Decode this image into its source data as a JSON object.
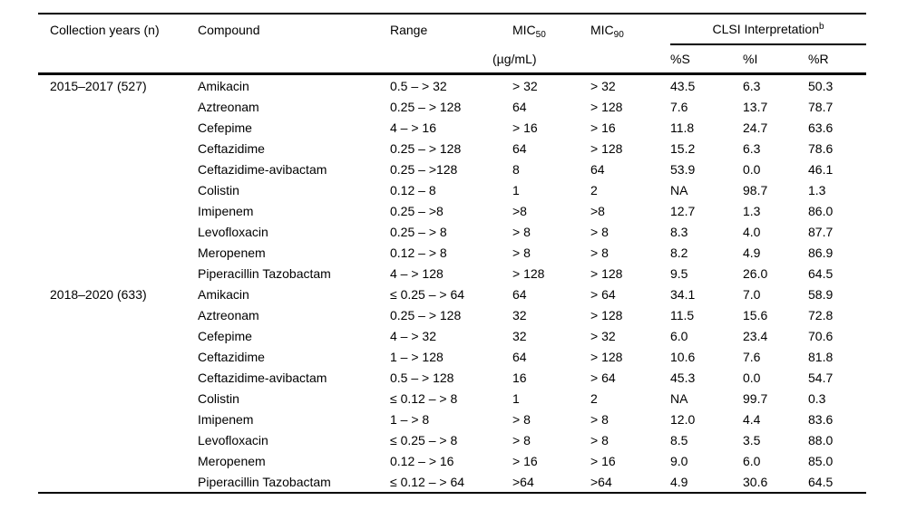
{
  "table": {
    "headers": {
      "collection_years": "Collection years (n)",
      "compound": "Compound",
      "range": "Range",
      "mic_label": "MIC",
      "mic50_sub": "50",
      "mic90_sub": "90",
      "clsi": "CLSI Interpretation",
      "clsi_sup": "b",
      "units": "(µg/mL)",
      "pct_s": "%S",
      "pct_i": "%I",
      "pct_r": "%R"
    },
    "groups": [
      {
        "label": "2015–2017 (527)",
        "rows": [
          {
            "compound": "Amikacin",
            "range": "0.5 – > 32",
            "mic50": "> 32",
            "mic90": "> 32",
            "pct_s": "43.5",
            "pct_i": "6.3",
            "pct_r": "50.3"
          },
          {
            "compound": "Aztreonam",
            "range": "0.25 – > 128",
            "mic50": "64",
            "mic90": "> 128",
            "pct_s": "7.6",
            "pct_i": "13.7",
            "pct_r": "78.7"
          },
          {
            "compound": "Cefepime",
            "range": "4 – > 16",
            "mic50": "> 16",
            "mic90": "> 16",
            "pct_s": "11.8",
            "pct_i": "24.7",
            "pct_r": "63.6"
          },
          {
            "compound": "Ceftazidime",
            "range": "0.25 – > 128",
            "mic50": "64",
            "mic90": "> 128",
            "pct_s": "15.2",
            "pct_i": "6.3",
            "pct_r": "78.6"
          },
          {
            "compound": "Ceftazidime-avibactam",
            "range": "0.25 – >128",
            "mic50": "8",
            "mic90": "64",
            "pct_s": "53.9",
            "pct_i": "0.0",
            "pct_r": "46.1"
          },
          {
            "compound": "Colistin",
            "range": "0.12 – 8",
            "mic50": "1",
            "mic90": "2",
            "pct_s": "NA",
            "pct_i": "98.7",
            "pct_r": "1.3"
          },
          {
            "compound": "Imipenem",
            "range": "0.25 – >8",
            "mic50": ">8",
            "mic90": ">8",
            "pct_s": "12.7",
            "pct_i": "1.3",
            "pct_r": "86.0"
          },
          {
            "compound": "Levofloxacin",
            "range": "0.25 – > 8",
            "mic50": "> 8",
            "mic90": "> 8",
            "pct_s": "8.3",
            "pct_i": "4.0",
            "pct_r": "87.7"
          },
          {
            "compound": "Meropenem",
            "range": "0.12 – > 8",
            "mic50": "> 8",
            "mic90": "> 8",
            "pct_s": "8.2",
            "pct_i": "4.9",
            "pct_r": "86.9"
          },
          {
            "compound": "Piperacillin Tazobactam",
            "range": "4 – > 128",
            "mic50": "> 128",
            "mic90": "> 128",
            "pct_s": "9.5",
            "pct_i": "26.0",
            "pct_r": "64.5"
          }
        ]
      },
      {
        "label": "2018–2020 (633)",
        "rows": [
          {
            "compound": "Amikacin",
            "range": "≤ 0.25 – > 64",
            "mic50": "64",
            "mic90": "> 64",
            "pct_s": "34.1",
            "pct_i": "7.0",
            "pct_r": "58.9"
          },
          {
            "compound": "Aztreonam",
            "range": "0.25 – > 128",
            "mic50": "32",
            "mic90": "> 128",
            "pct_s": "11.5",
            "pct_i": "15.6",
            "pct_r": "72.8"
          },
          {
            "compound": "Cefepime",
            "range": "4 – > 32",
            "mic50": "32",
            "mic90": "> 32",
            "pct_s": "6.0",
            "pct_i": "23.4",
            "pct_r": "70.6"
          },
          {
            "compound": "Ceftazidime",
            "range": "1 – > 128",
            "mic50": "64",
            "mic90": "> 128",
            "pct_s": "10.6",
            "pct_i": "7.6",
            "pct_r": "81.8"
          },
          {
            "compound": "Ceftazidime-avibactam",
            "range": "0.5 – > 128",
            "mic50": "16",
            "mic90": "> 64",
            "pct_s": "45.3",
            "pct_i": "0.0",
            "pct_r": "54.7"
          },
          {
            "compound": "Colistin",
            "range": "≤ 0.12 – > 8",
            "mic50": "1",
            "mic90": "2",
            "pct_s": "NA",
            "pct_i": "99.7",
            "pct_r": "0.3"
          },
          {
            "compound": "Imipenem",
            "range": "1 – > 8",
            "mic50": "> 8",
            "mic90": "> 8",
            "pct_s": "12.0",
            "pct_i": "4.4",
            "pct_r": "83.6"
          },
          {
            "compound": "Levofloxacin",
            "range": "≤ 0.25 – > 8",
            "mic50": "> 8",
            "mic90": "> 8",
            "pct_s": "8.5",
            "pct_i": "3.5",
            "pct_r": "88.0"
          },
          {
            "compound": "Meropenem",
            "range": "0.12 – > 16",
            "mic50": "> 16",
            "mic90": "> 16",
            "pct_s": "9.0",
            "pct_i": "6.0",
            "pct_r": "85.0"
          },
          {
            "compound": "Piperacillin Tazobactam",
            "range": "≤ 0.12 – > 64",
            "mic50": ">64",
            "mic90": ">64",
            "pct_s": "4.9",
            "pct_i": "30.6",
            "pct_r": "64.5"
          }
        ]
      }
    ]
  }
}
